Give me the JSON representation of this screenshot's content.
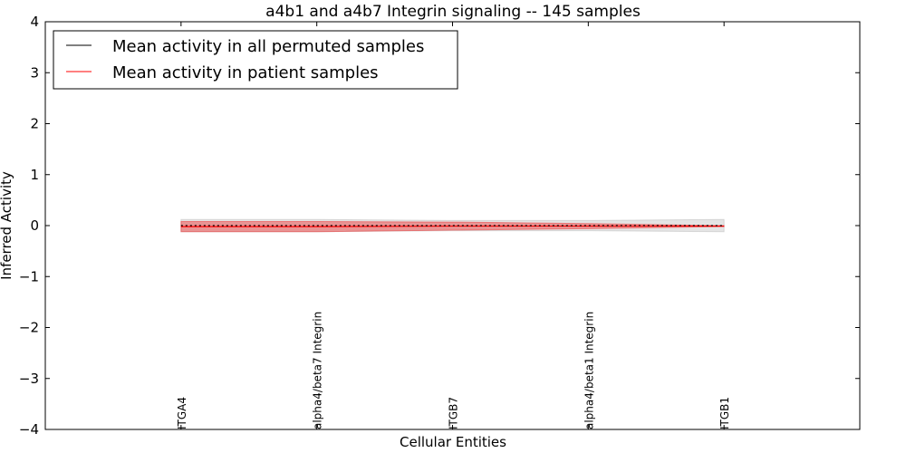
{
  "chart_data": {
    "type": "line",
    "title": "a4b1 and a4b7 Integrin signaling -- 145 samples",
    "xlabel": "Cellular Entities",
    "ylabel": "Inferred Activity",
    "xlim": [
      0,
      6
    ],
    "ylim": [
      -4,
      4
    ],
    "yticks": [
      4,
      3,
      2,
      1,
      0,
      -1,
      -2,
      -3,
      -4
    ],
    "ytick_labels": [
      "4",
      "3",
      "2",
      "1",
      "0",
      "−1",
      "−2",
      "−3",
      "−4"
    ],
    "categories": [
      "ITGA4",
      "alpha4/beta7 Integrin",
      "ITGB7",
      "alpha4/beta1 Integrin",
      "ITGB1"
    ],
    "x": [
      1,
      2,
      3,
      4,
      5
    ],
    "series": [
      {
        "name": "Mean activity in all permuted samples",
        "color": "#000000",
        "values": [
          0,
          0,
          0,
          0,
          0
        ],
        "band": [
          0.12,
          0.12,
          0.1,
          0.1,
          0.12
        ],
        "band_color": "#bbbbbb"
      },
      {
        "name": "Mean activity in patient samples",
        "color": "#ff0000",
        "values": [
          -0.02,
          -0.02,
          -0.01,
          -0.01,
          -0.01
        ],
        "band": [
          0.1,
          0.1,
          0.08,
          0.05,
          0.01
        ],
        "band_color": "#ee3333"
      }
    ],
    "legend": "top-left",
    "grid": false
  }
}
